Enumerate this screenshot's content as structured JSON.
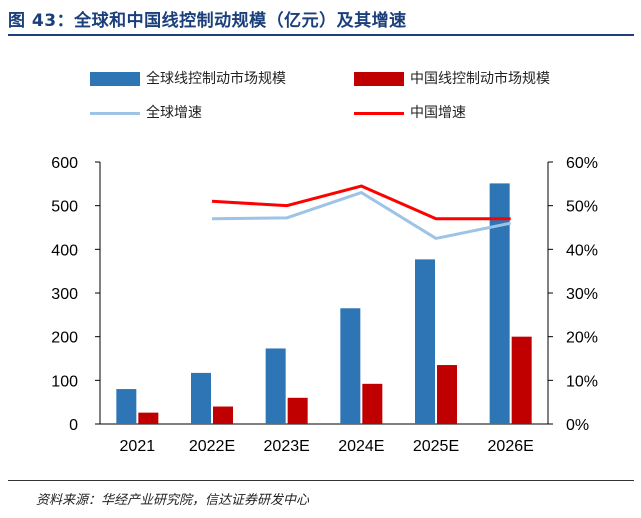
{
  "header": {
    "title": "图 43：全球和中国线控制动规模（亿元）及其增速"
  },
  "footer": {
    "source": "资料来源：华经产业研究院，信达证券研发中心"
  },
  "colors": {
    "global_bar": "#2e75b6",
    "china_bar": "#c00000",
    "global_line": "#9dc3e6",
    "china_line": "#ff0000",
    "title": "#1a3f7a"
  },
  "chart_data": {
    "type": "bar",
    "title": "全球和中国线控制动规模（亿元）及其增速",
    "categories": [
      "2021",
      "2022E",
      "2023E",
      "2024E",
      "2025E",
      "2026E"
    ],
    "series": [
      {
        "name": "全球线控制动市场规模",
        "kind": "bar",
        "axis": "left",
        "values": [
          80,
          117,
          173,
          265,
          377,
          551
        ]
      },
      {
        "name": "中国线控制动市场规模",
        "kind": "bar",
        "axis": "left",
        "values": [
          26,
          40,
          60,
          92,
          135,
          200
        ]
      },
      {
        "name": "全球增速",
        "kind": "line",
        "axis": "right",
        "values": [
          null,
          0.47,
          0.472,
          0.53,
          0.425,
          0.46
        ]
      },
      {
        "name": "中国增速",
        "kind": "line",
        "axis": "right",
        "values": [
          null,
          0.51,
          0.5,
          0.545,
          0.47,
          0.47
        ]
      }
    ],
    "ylim_left": [
      0,
      600
    ],
    "yticks_left": [
      "0",
      "100",
      "200",
      "300",
      "400",
      "500",
      "600"
    ],
    "ylim_right": [
      0,
      0.6
    ],
    "yticks_right": [
      "0%",
      "10%",
      "20%",
      "30%",
      "40%",
      "50%",
      "60%"
    ],
    "legend": [
      "全球线控制动市场规模",
      "中国线控制动市场规模",
      "全球增速",
      "中国增速"
    ],
    "legend_position": "top"
  }
}
